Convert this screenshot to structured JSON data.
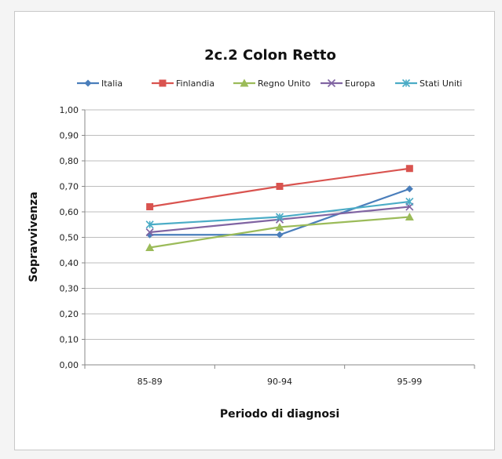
{
  "chart_data": {
    "type": "line",
    "title": "2c.2 Colon Retto",
    "xlabel": "Periodo di diagnosi",
    "ylabel": "Sopravvivenza",
    "categories": [
      "85-89",
      "90-94",
      "95-99"
    ],
    "ylim": [
      0,
      1
    ],
    "yticks": [
      "0,00",
      "0,10",
      "0,20",
      "0,30",
      "0,40",
      "0,50",
      "0,60",
      "0,70",
      "0,80",
      "0,90",
      "1,00"
    ],
    "grid": true,
    "legend_position": "top",
    "series": [
      {
        "name": "Italia",
        "values": [
          0.51,
          0.51,
          0.69
        ],
        "color": "#4a7ebb",
        "marker": "diamond"
      },
      {
        "name": "Finlandia",
        "values": [
          0.62,
          0.7,
          0.77
        ],
        "color": "#d9534f",
        "marker": "square"
      },
      {
        "name": "Regno Unito",
        "values": [
          0.46,
          0.54,
          0.58
        ],
        "color": "#9bbb59",
        "marker": "triangle"
      },
      {
        "name": "Europa",
        "values": [
          0.52,
          0.57,
          0.62
        ],
        "color": "#8064a2",
        "marker": "x"
      },
      {
        "name": "Stati Uniti",
        "values": [
          0.55,
          0.58,
          0.64
        ],
        "color": "#4bacc6",
        "marker": "star"
      }
    ]
  }
}
